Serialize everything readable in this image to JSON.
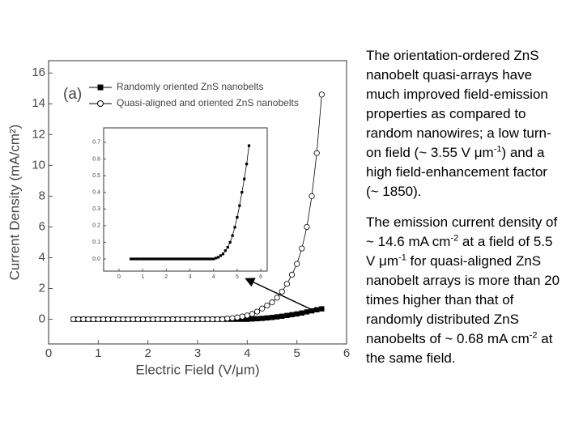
{
  "chart_data": [
    {
      "type": "line",
      "panel_label": "(a)",
      "x_label": "Electric Field (V/μm)",
      "y_label": "Current Density (mA/cm²)",
      "x": [
        0.5,
        0.6,
        0.7,
        0.8,
        0.9,
        1.0,
        1.1,
        1.2,
        1.3,
        1.4,
        1.5,
        1.6,
        1.7,
        1.8,
        1.9,
        2.0,
        2.1,
        2.2,
        2.3,
        2.4,
        2.5,
        2.6,
        2.7,
        2.8,
        2.9,
        3.0,
        3.1,
        3.2,
        3.3,
        3.4,
        3.5,
        3.6,
        3.7,
        3.8,
        3.9,
        4.0,
        4.1,
        4.2,
        4.3,
        4.4,
        4.5,
        4.6,
        4.7,
        4.8,
        4.9,
        5.0,
        5.1,
        5.2,
        5.3,
        5.4,
        5.5
      ],
      "series": [
        {
          "name": "Randomly oriented ZnS nanobelts",
          "color": "#000000",
          "marker": "square",
          "values": [
            0,
            0,
            0,
            0,
            0,
            0,
            0,
            0,
            0,
            0,
            0,
            0,
            0,
            0,
            0,
            0,
            0,
            0,
            0,
            0,
            0,
            0,
            0,
            0,
            0,
            0,
            0,
            0,
            0,
            0,
            0,
            0,
            0,
            0,
            0,
            0,
            0.02,
            0.04,
            0.06,
            0.09,
            0.12,
            0.16,
            0.2,
            0.25,
            0.3,
            0.35,
            0.41,
            0.48,
            0.55,
            0.62,
            0.68
          ]
        },
        {
          "name": "Quasi-aligned and oriented ZnS nanobelts",
          "color": "#000000",
          "marker": "circle",
          "values": [
            0,
            0,
            0,
            0,
            0,
            0,
            0,
            0,
            0,
            0,
            0,
            0,
            0,
            0,
            0,
            0,
            0,
            0,
            0,
            0,
            0,
            0,
            0,
            0,
            0,
            0,
            0,
            0,
            0,
            0,
            0,
            0.05,
            0.08,
            0.12,
            0.18,
            0.25,
            0.35,
            0.5,
            0.7,
            0.9,
            1.1,
            1.4,
            1.8,
            2.3,
            2.9,
            3.6,
            4.6,
            6.0,
            8.0,
            10.8,
            14.6
          ]
        }
      ],
      "xlim": [
        0,
        6
      ],
      "xticks": [
        0,
        1,
        2,
        3,
        4,
        5,
        6
      ],
      "ylim": [
        -1.6,
        16.8
      ],
      "yticks": [
        0,
        2,
        4,
        6,
        8,
        10,
        12,
        14,
        16
      ]
    },
    {
      "type": "line",
      "x": [
        0.5,
        0.6,
        0.7,
        0.8,
        0.9,
        1.0,
        1.1,
        1.2,
        1.3,
        1.4,
        1.5,
        1.6,
        1.7,
        1.8,
        1.9,
        2.0,
        2.1,
        2.2,
        2.3,
        2.4,
        2.5,
        2.6,
        2.7,
        2.8,
        2.9,
        3.0,
        3.1,
        3.2,
        3.3,
        3.4,
        3.5,
        3.6,
        3.7,
        3.8,
        3.9,
        4.0,
        4.1,
        4.2,
        4.3,
        4.4,
        4.5,
        4.6,
        4.7,
        4.8,
        4.9,
        5.0,
        5.1,
        5.2,
        5.3,
        5.4,
        5.5
      ],
      "series": [
        {
          "color": "#000000",
          "marker": "square",
          "values": [
            0,
            0,
            0,
            0,
            0,
            0,
            0,
            0,
            0,
            0,
            0,
            0,
            0,
            0,
            0,
            0,
            0,
            0,
            0,
            0,
            0,
            0,
            0,
            0,
            0,
            0,
            0,
            0,
            0,
            0,
            0,
            0,
            0,
            0,
            0,
            0,
            0.005,
            0.01,
            0.02,
            0.03,
            0.05,
            0.07,
            0.1,
            0.14,
            0.19,
            0.25,
            0.32,
            0.4,
            0.48,
            0.57,
            0.68
          ]
        }
      ],
      "xlim": [
        -0.65,
        6.27
      ],
      "xticks": [
        0,
        1,
        2,
        3,
        4,
        5,
        6
      ],
      "ylim": [
        -0.073,
        0.787
      ],
      "yticks": [
        {
          "value": 0,
          "label": "0.0"
        },
        0.1,
        0.2,
        0.3,
        0.4,
        0.5,
        0.6,
        0.7
      ]
    }
  ],
  "notes": [
    {
      "runs": [
        "The orientation-ordered ZnS nanobelt quasi-arrays have much improved field-emission properties as compared to random nanowires; a low turn-on field (~ 3.55 V μm",
        "-1",
        ") and a high field-enhancement factor (~ 1850)."
      ]
    },
    {
      "runs": [
        "The emission current density of ~ 14.6 mA cm",
        "-2",
        " at a field of 5.5 V μm",
        "-1",
        " for quasi-aligned ZnS nanobelt arrays is more than 20 times higher than that of randomly distributed ZnS nanobelts of ~ 0.68 mA cm",
        "-2",
        " at the same field."
      ]
    }
  ]
}
